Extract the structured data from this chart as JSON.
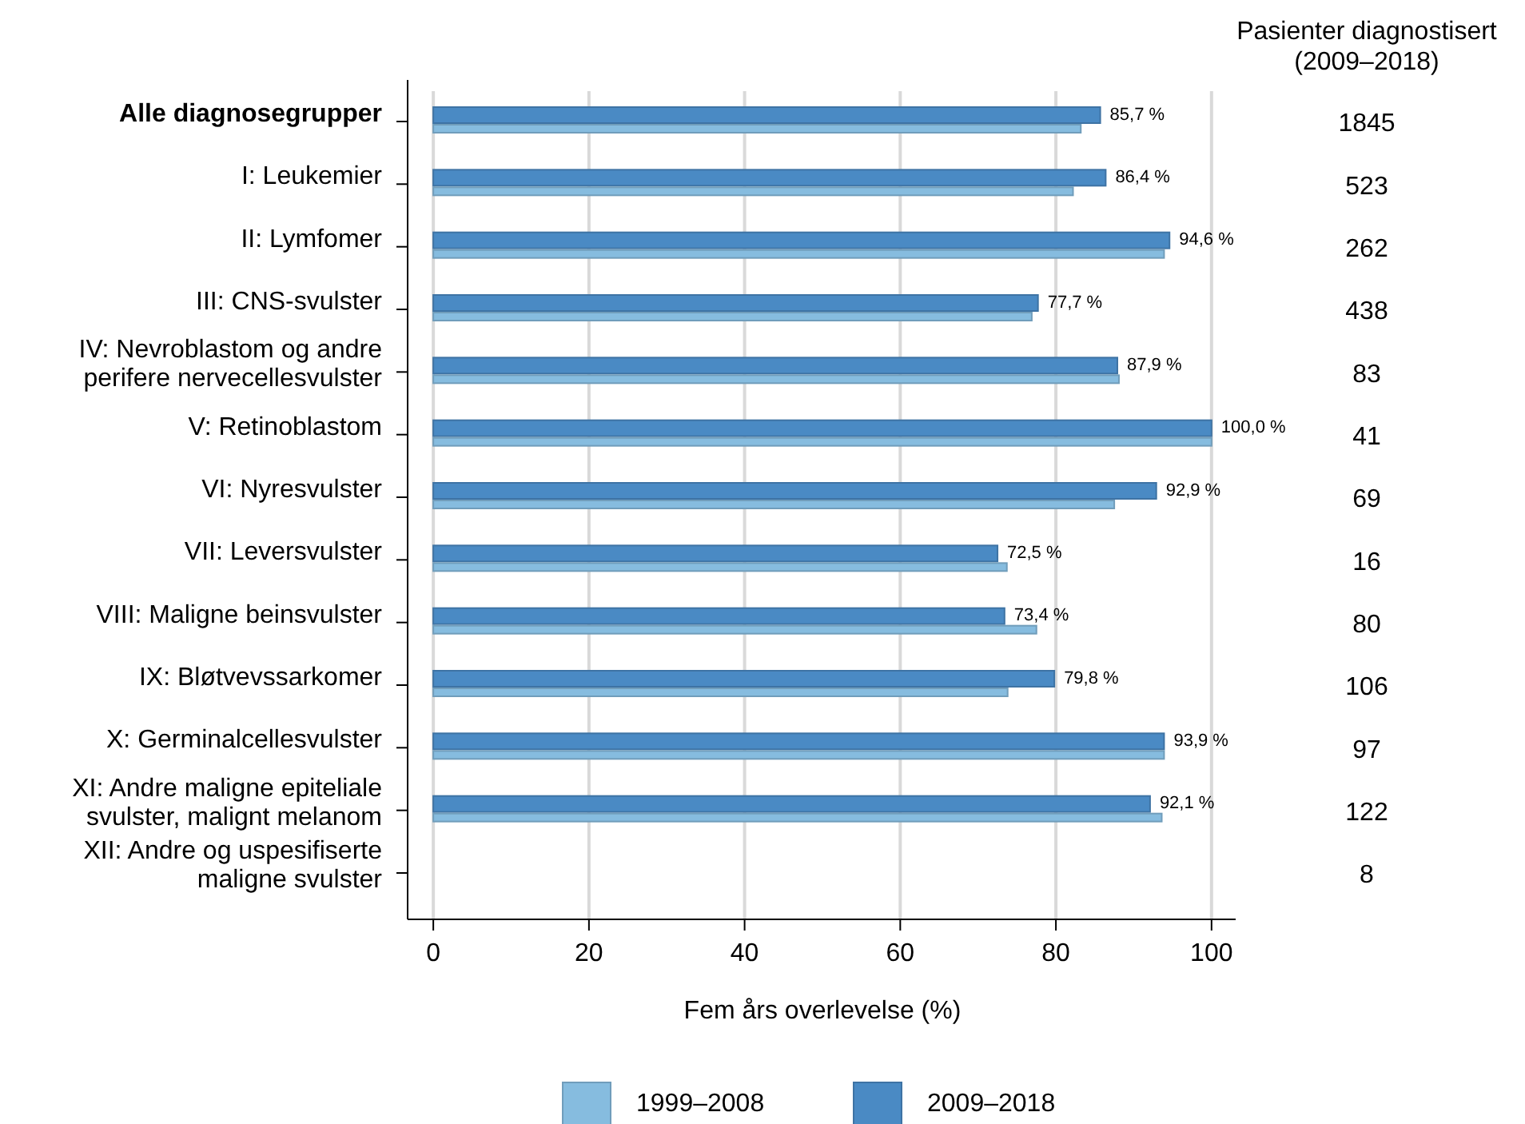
{
  "chart_data": {
    "type": "bar",
    "orientation": "horizontal",
    "xlabel": "Fem års overlevelse (%)",
    "y2label": "Pasienter diagnostisert\n(2009–2018)",
    "categories": [
      "Alle diagnosegrupper",
      "I: Leukemier",
      "II: Lymfomer",
      "III: CNS-svulster",
      "IV: Nevroblastom og andre\nperifere nervecellesvulster",
      "V: Retinoblastom",
      "VI: Nyresvulster",
      "VII: Leversvulster",
      "VIII: Maligne beinsvulster",
      "IX: Bløtvevssarkomer",
      "X: Germinalcellesvulster",
      "XI: Andre maligne epiteliale\nsvulster, malignt melanom",
      "XII: Andre og uspesifiserte\nmaligne svulster"
    ],
    "y2_categories": [
      "1845",
      "523",
      "262",
      "438",
      "83",
      "41",
      "69",
      "16",
      "80",
      "106",
      "97",
      "122",
      "8"
    ],
    "series": [
      {
        "name": "2009–2018",
        "color": "#4a8ac4",
        "values": [
          85.7,
          86.4,
          94.6,
          77.7,
          87.9,
          100.0,
          92.9,
          72.5,
          73.4,
          79.8,
          93.9,
          92.1,
          null
        ],
        "value_labels": [
          "85,7 %",
          "86,4 %",
          "94,6 %",
          "77,7 %",
          "87,9 %",
          "100,0 %",
          "92,9 %",
          "72,5 %",
          "73,4 %",
          "79,8 %",
          "93,9 %",
          "92,1 %",
          null
        ]
      },
      {
        "name": "1999–2008",
        "color": "#86bcdf",
        "values": [
          83.2,
          82.2,
          93.9,
          76.9,
          88.1,
          100.0,
          87.5,
          73.7,
          77.5,
          73.8,
          93.9,
          93.6,
          null
        ]
      }
    ],
    "xlim": [
      -3.3,
      103.1
    ],
    "xticks": [
      0,
      20,
      40,
      60,
      80,
      100
    ],
    "grid": "x",
    "legend": "bottom"
  }
}
